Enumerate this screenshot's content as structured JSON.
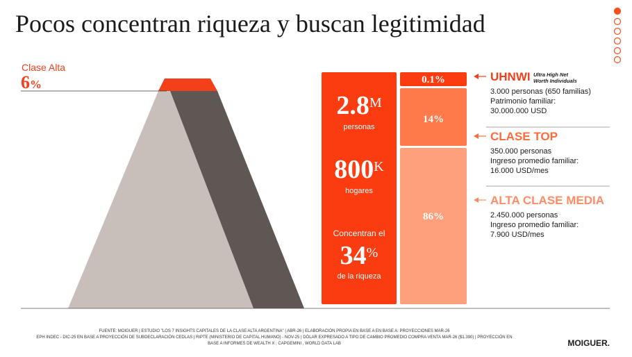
{
  "header": {
    "title": "Pocos concentran riqueza y buscan legitimidad"
  },
  "pyramid": {
    "label": "Clase Alta",
    "number": "6",
    "unit": "%"
  },
  "stats": [
    {
      "number": "2.8",
      "unit": "M",
      "label": "personas"
    },
    {
      "number": "800",
      "unit": "K",
      "label": "hogares"
    },
    {
      "prefix": "Concentran el",
      "number": "34",
      "unit": "%",
      "label": "de la riqueza"
    }
  ],
  "segments": [
    "0.1%",
    "14%",
    "86%"
  ],
  "groups": [
    {
      "title": "UHNWI",
      "subtitle": [
        "Ultra High Net",
        "Worth Individuals"
      ],
      "lines": [
        "3.000 personas (650 familias)",
        "Patrimonio familiar:",
        "30.000.000 USD"
      ]
    },
    {
      "title": "CLASE TOP",
      "lines": [
        "350.000 personas",
        "Ingreso promedio familiar:",
        "16.000 USD/mes"
      ]
    },
    {
      "title": "ALTA CLASE MEDIA",
      "lines": [
        "2.450.000 personas",
        "Ingreso promedio familiar:",
        "7.900 USD/mes"
      ]
    }
  ],
  "footer": {
    "source": [
      "FUENTE:  MOIGUER | ESTUDIO \"LOS 7 INSIGHTS CAPITALES DE LA CLASE ALTA ARGENTINA\" | ABR-26 | ELABORACIÓN PROPIA EN BASE A EN BASE A: PROYECCIONES MAR-26",
      "EPH INDEC - DIC-25 EN BASE A PROYECCIÓN DE SUBDECLARACIÓN CEDLAS | RIPTE (MINISTERIO DE CAPITAL HUMANO) - NOV-25 | DÓLAR EXPRESADO A TIPO DE CAMBIO PROMEDIO COMPRA VENTA MAR-26 ($1.390) | PROYECCIÓN EN",
      "BASE A INFORMES DE WEALTH X , CAPGEMINI , WORLD DATA LAB"
    ],
    "logo": "MOIGUER."
  }
}
